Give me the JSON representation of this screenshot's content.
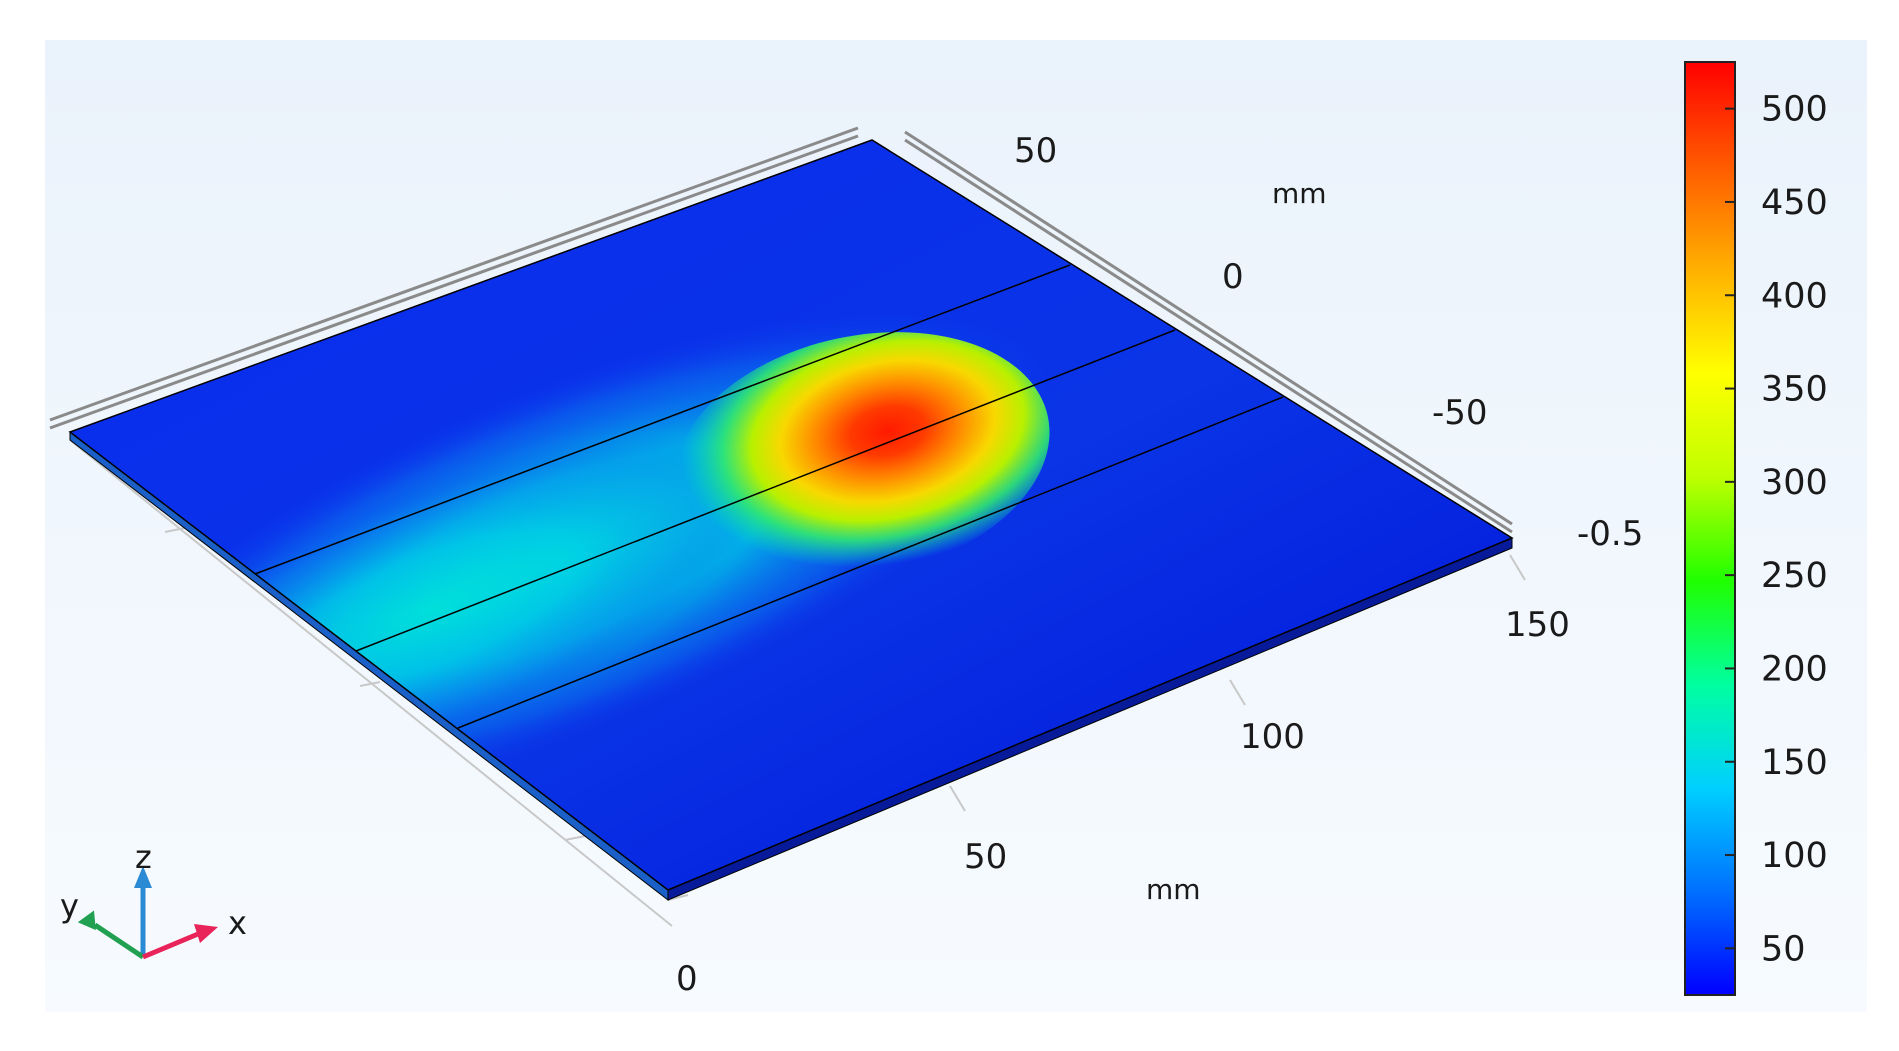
{
  "plot": {
    "background_top": "#eaf2fb",
    "background_bottom": "#f7fbff",
    "plate_colors": {
      "cold": "#0019e8",
      "mid": "#00d8e0",
      "hot": "#ff1e00"
    }
  },
  "axes": {
    "y_axis_ticks": [
      "50",
      "0",
      "-50"
    ],
    "y_axis_unit": "mm",
    "z_axis_tick": "-0.5",
    "x_axis_ticks": [
      "0",
      "50",
      "100",
      "150"
    ],
    "x_axis_unit": "mm"
  },
  "colorbar": {
    "ticks": [
      "500",
      "450",
      "400",
      "350",
      "300",
      "250",
      "200",
      "150",
      "100",
      "50"
    ],
    "range": [
      25,
      525
    ],
    "colors": [
      "#0000ff",
      "#0070ff",
      "#00d0ff",
      "#00ffa0",
      "#20ff00",
      "#c0ff00",
      "#ffff00",
      "#ffb000",
      "#ff5a00",
      "#ff0000"
    ]
  },
  "triad": {
    "labels": {
      "x": "x",
      "y": "y",
      "z": "z"
    },
    "colors": {
      "x": "#e8245a",
      "y": "#20a050",
      "z": "#2a8ad4"
    }
  }
}
